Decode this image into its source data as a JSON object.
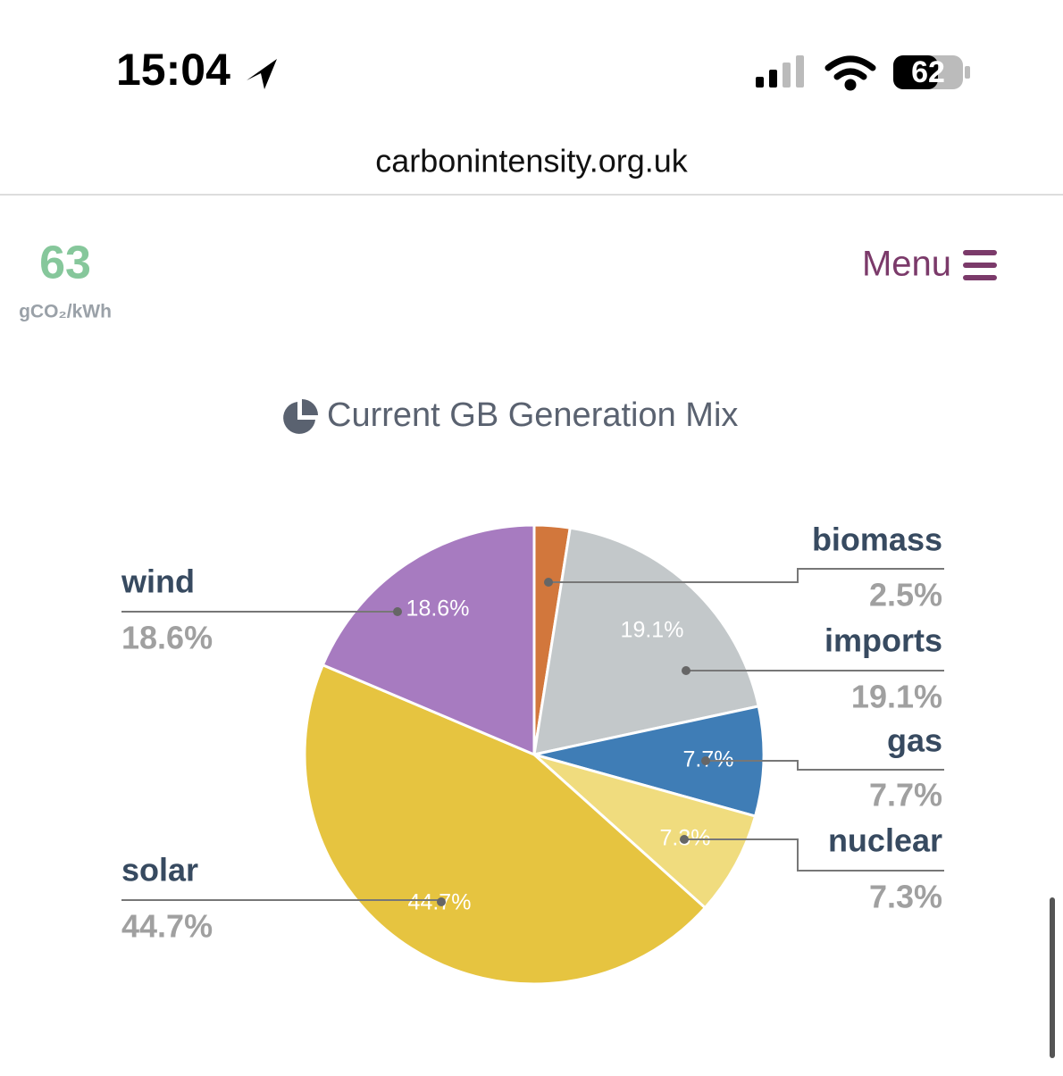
{
  "status_bar": {
    "time": "15:04",
    "battery": "62"
  },
  "url": "carbonintensity.org.uk",
  "intensity": {
    "value": "63",
    "unit": "gCO₂/kWh"
  },
  "menu": "Menu",
  "chart_data": {
    "type": "pie",
    "title": "Current GB Generation Mix",
    "categories": [
      "biomass",
      "imports",
      "gas",
      "nuclear",
      "solar",
      "wind"
    ],
    "values": [
      2.5,
      19.1,
      7.7,
      7.3,
      44.7,
      18.6
    ],
    "value_labels": [
      "2.5%",
      "19.1%",
      "7.7%",
      "7.3%",
      "44.7%",
      "18.6%"
    ],
    "colors": [
      "#d2773c",
      "#c3c8ca",
      "#3f7db6",
      "#f0dc7e",
      "#e6c440",
      "#a77bc0"
    ]
  }
}
